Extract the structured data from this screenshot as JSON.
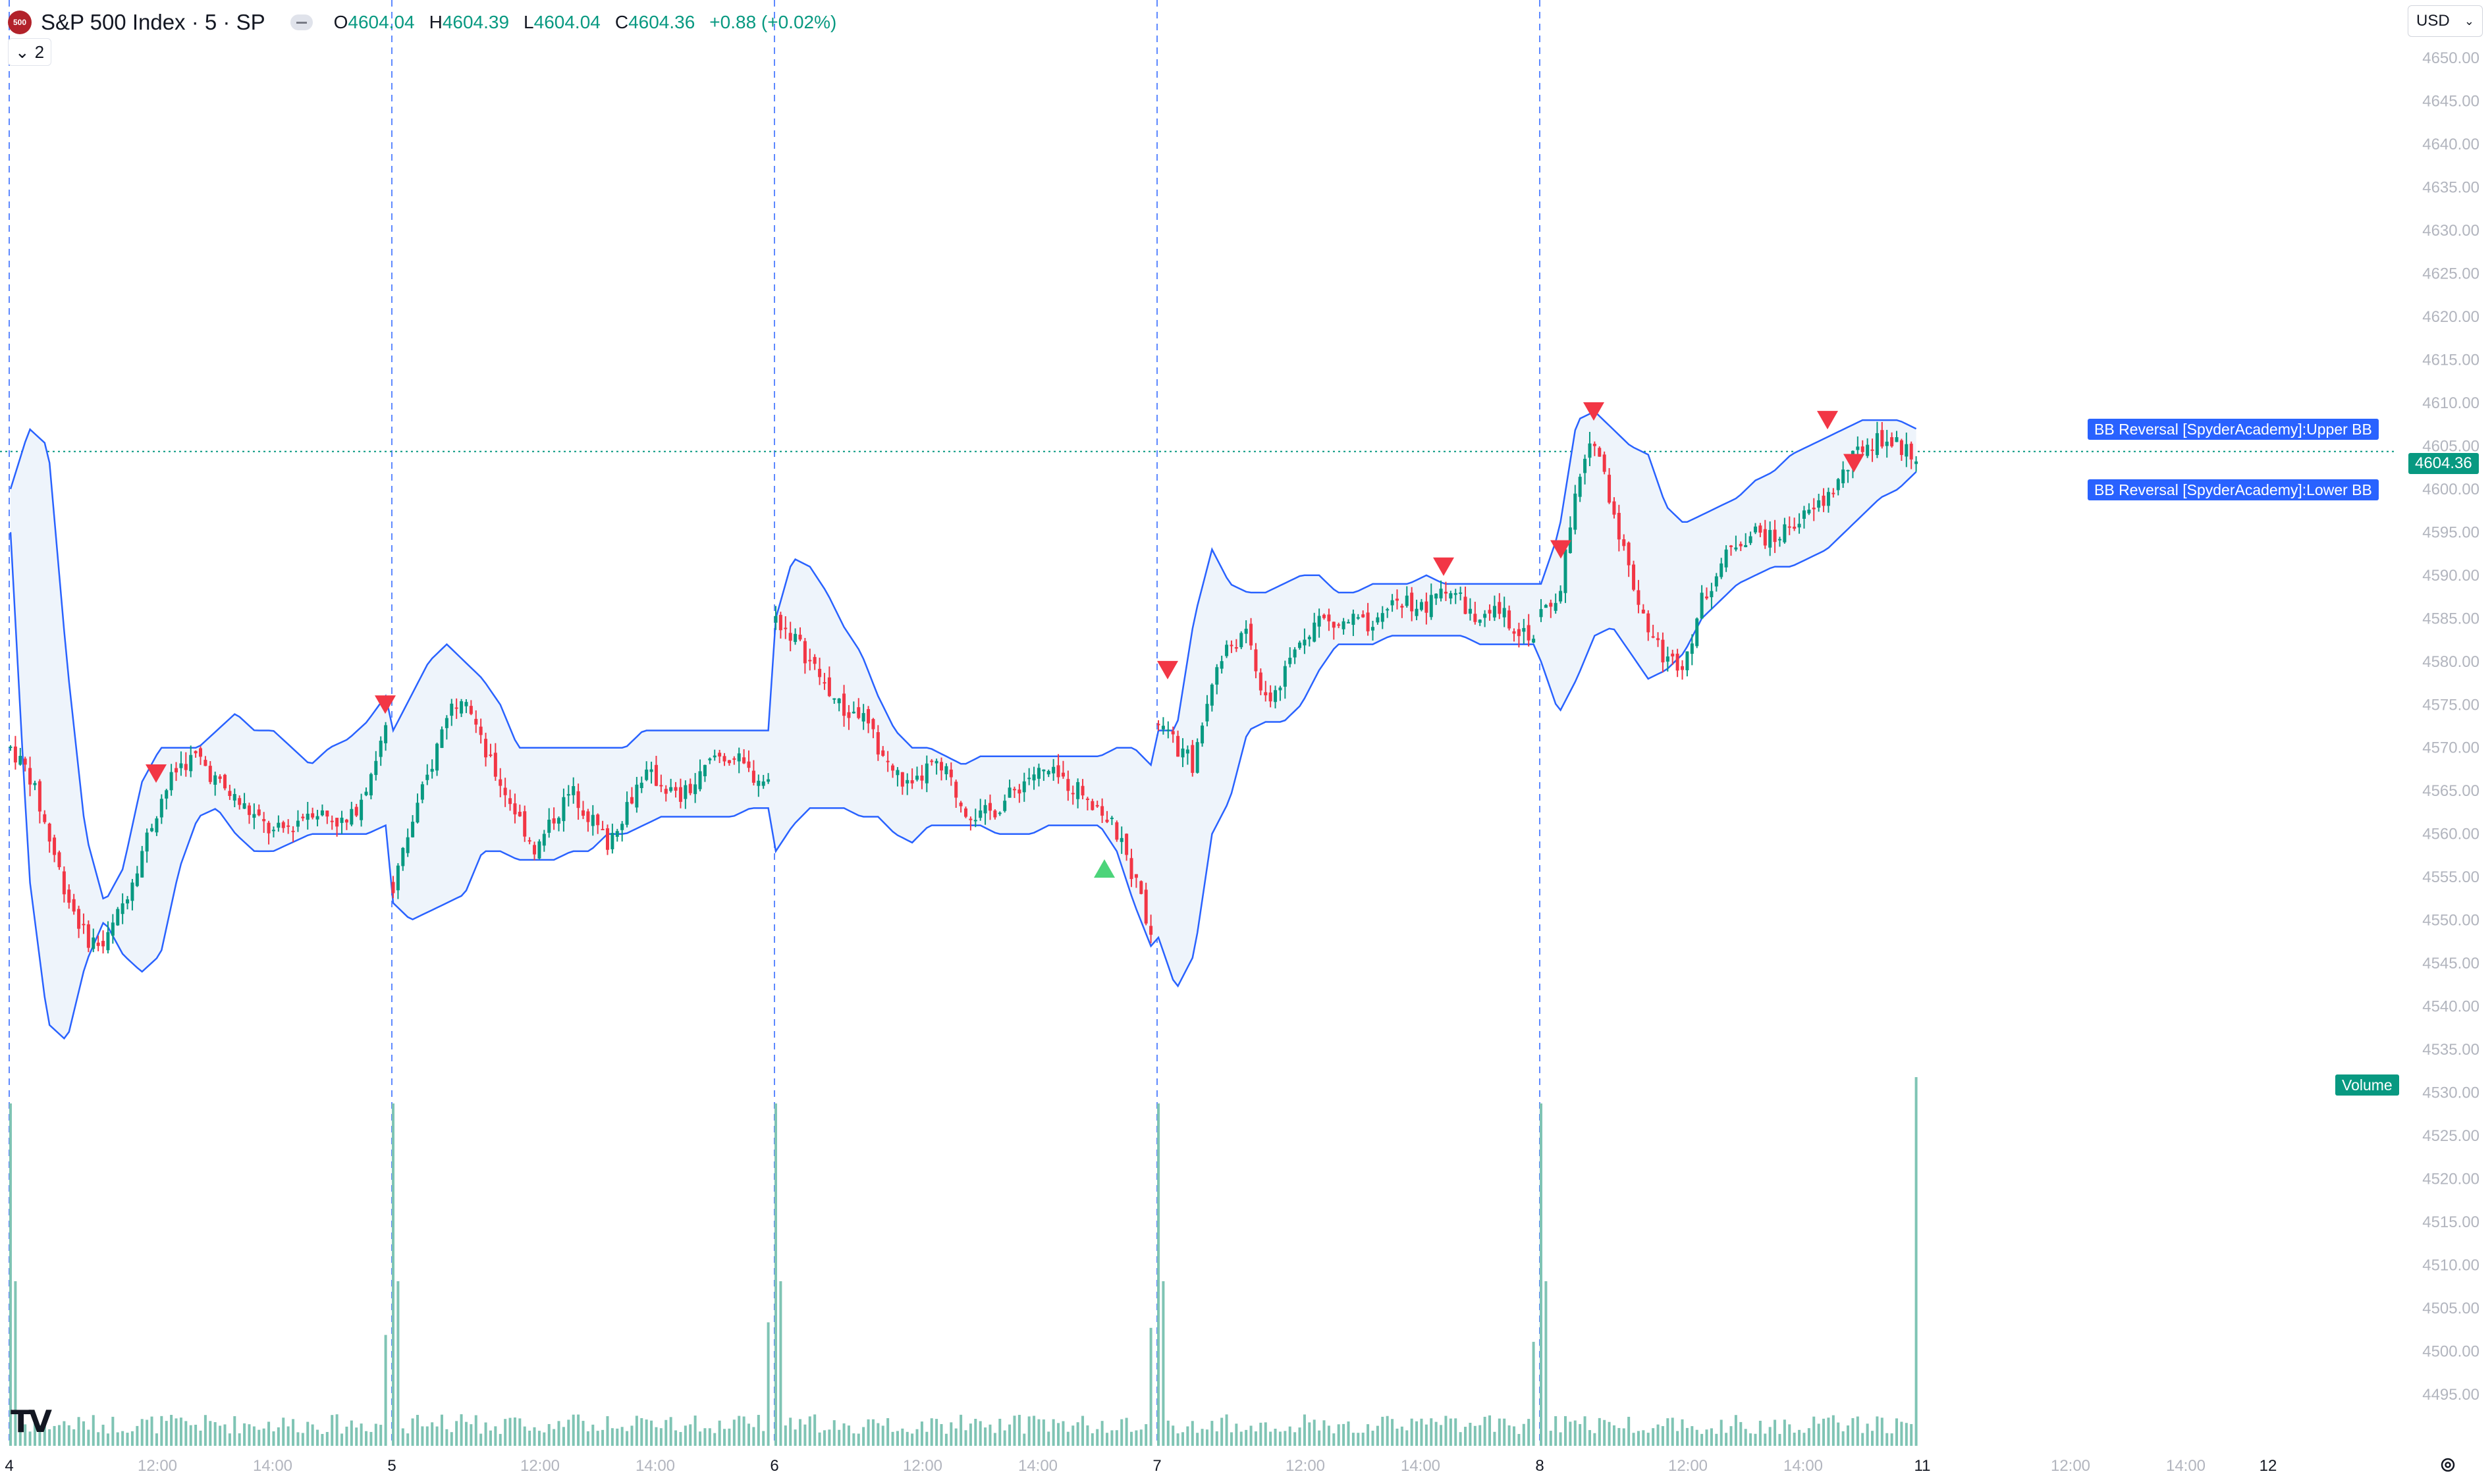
{
  "header": {
    "logo_text": "500",
    "symbol": "S&P 500 Index · 5 · SP",
    "ohlc": [
      {
        "key": "O",
        "value": "4604.04"
      },
      {
        "key": "H",
        "value": "4604.39"
      },
      {
        "key": "L",
        "value": "4604.04"
      },
      {
        "key": "C",
        "value": "4604.36"
      }
    ],
    "change": "+0.88 (+0.02%)",
    "collapse_count": "2",
    "currency": "USD"
  },
  "labels": {
    "upper_bb": "BB Reversal [SpyderAcademy]:Upper BB",
    "lower_bb": "BB Reversal [SpyderAcademy]:Lower BB",
    "last_price": "4604.36",
    "volume": "Volume"
  },
  "colors": {
    "up": "#089981",
    "down": "#f23645",
    "band": "#2962ff",
    "band_fill": "#eef4fb",
    "volume": "#7fc4b4",
    "signal_down": "#f23645",
    "signal_up": "#4cd47a",
    "axis_text": "#b2b5be",
    "session_line": "#2962ff"
  },
  "chart_data": {
    "type": "candlestick",
    "title": "S&P 500 Index · 5 · SP",
    "interval": "5 min",
    "y_axis": {
      "min": 4495,
      "max": 4650,
      "ticks": [
        "4650.00",
        "4645.00",
        "4640.00",
        "4635.00",
        "4630.00",
        "4625.00",
        "4620.00",
        "4615.00",
        "4610.00",
        "4605.00",
        "4600.00",
        "4595.00",
        "4590.00",
        "4585.00",
        "4580.00",
        "4575.00",
        "4570.00",
        "4565.00",
        "4560.00",
        "4555.00",
        "4550.00",
        "4545.00",
        "4540.00",
        "4535.00",
        "4530.00",
        "4525.00",
        "4520.00",
        "4515.00",
        "4510.00",
        "4505.00",
        "4500.00",
        "4495.00"
      ]
    },
    "x_axis": {
      "ticks": [
        "4",
        "12:00",
        "14:00",
        "5",
        "12:00",
        "14:00",
        "6",
        "12:00",
        "14:00",
        "7",
        "12:00",
        "14:00",
        "8",
        "12:00",
        "14:00",
        "11",
        "12:00",
        "14:00",
        "12"
      ],
      "session_starts": [
        "4",
        "5",
        "6",
        "7",
        "8"
      ]
    },
    "last_price": 4604.36,
    "sessions": [
      {
        "day": "4",
        "close_path": [
          4570,
          4567,
          4560,
          4553,
          4548,
          4547,
          4552,
          4558,
          4564,
          4568,
          4569,
          4566,
          4564,
          4562,
          4560,
          4561,
          4563,
          4562,
          4561,
          4566,
          4572
        ],
        "upper": [
          4600,
          4607,
          4605,
          4580,
          4560,
          4552,
          4556,
          4566,
          4570,
          4570,
          4570,
          4572,
          4574,
          4572,
          4572,
          4570,
          4568,
          4570,
          4571,
          4573,
          4576
        ],
        "lower": [
          4595,
          4555,
          4538,
          4536,
          4545,
          4550,
          4546,
          4544,
          4546,
          4556,
          4562,
          4563,
          4560,
          4558,
          4558,
          4559,
          4560,
          4560,
          4560,
          4560,
          4561
        ]
      },
      {
        "day": "5",
        "close_path": [
          4554,
          4561,
          4567,
          4574,
          4577,
          4570,
          4566,
          4562,
          4558,
          4562,
          4565,
          4562,
          4559,
          4563,
          4567,
          4566,
          4564,
          4566,
          4569,
          4569,
          4567,
          4566
        ],
        "upper": [
          4572,
          4576,
          4580,
          4582,
          4580,
          4578,
          4575,
          4570,
          4570,
          4570,
          4570,
          4570,
          4570,
          4570,
          4572,
          4572,
          4572,
          4572,
          4572,
          4572,
          4572,
          4572
        ],
        "lower": [
          4552,
          4550,
          4551,
          4552,
          4553,
          4558,
          4558,
          4557,
          4557,
          4557,
          4558,
          4558,
          4560,
          4560,
          4561,
          4562,
          4562,
          4562,
          4562,
          4562,
          4563,
          4563
        ]
      },
      {
        "day": "6",
        "close_path": [
          4585,
          4583,
          4580,
          4577,
          4574,
          4574,
          4570,
          4567,
          4565,
          4568,
          4567,
          4563,
          4562,
          4563,
          4565,
          4567,
          4567,
          4566,
          4565,
          4563,
          4560,
          4555,
          4549
        ],
        "upper": [
          4585,
          4592,
          4591,
          4588,
          4584,
          4581,
          4576,
          4572,
          4570,
          4570,
          4569,
          4568,
          4569,
          4569,
          4569,
          4569,
          4569,
          4569,
          4569,
          4569,
          4570,
          4570,
          4568
        ],
        "lower": [
          4558,
          4561,
          4563,
          4563,
          4563,
          4562,
          4562,
          4560,
          4559,
          4561,
          4561,
          4561,
          4561,
          4560,
          4560,
          4560,
          4561,
          4561,
          4561,
          4561,
          4558,
          4552,
          4547
        ]
      },
      {
        "day": "7",
        "close_path": [
          4573,
          4570,
          4568,
          4578,
          4582,
          4583,
          4575,
          4578,
          4583,
          4585,
          4584,
          4585,
          4583,
          4587,
          4587,
          4586,
          4589,
          4587,
          4584,
          4586,
          4584,
          4583
        ],
        "upper": [
          4572,
          4572,
          4585,
          4593,
          4589,
          4588,
          4588,
          4589,
          4590,
          4590,
          4588,
          4588,
          4589,
          4589,
          4589,
          4590,
          4589,
          4589,
          4589,
          4589,
          4589,
          4589
        ],
        "lower": [
          4548,
          4542,
          4546,
          4560,
          4564,
          4572,
          4573,
          4573,
          4575,
          4579,
          4582,
          4582,
          4582,
          4583,
          4583,
          4583,
          4583,
          4583,
          4582,
          4582,
          4582,
          4582
        ]
      },
      {
        "day": "8",
        "close_path": [
          4585,
          4588,
          4600,
          4606,
          4598,
          4590,
          4584,
          4580,
          4580,
          4587,
          4591,
          4594,
          4595,
          4594,
          4596,
          4597,
          4599,
          4602,
          4605,
          4606,
          4605,
          4604
        ],
        "upper": [
          4589,
          4595,
          4608,
          4609,
          4607,
          4605,
          4604,
          4598,
          4596,
          4597,
          4598,
          4599,
          4601,
          4602,
          4604,
          4605,
          4606,
          4607,
          4608,
          4608,
          4608,
          4607
        ],
        "lower": [
          4580,
          4574,
          4578,
          4583,
          4584,
          4581,
          4578,
          4579,
          4581,
          4585,
          4587,
          4589,
          4590,
          4591,
          4591,
          4592,
          4593,
          4595,
          4597,
          4599,
          4600,
          4602
        ]
      }
    ],
    "signals": [
      {
        "type": "sell",
        "day": "4",
        "approx_price": 4567
      },
      {
        "type": "sell",
        "day": "4",
        "approx_price": 4575
      },
      {
        "type": "sell",
        "day": "6",
        "approx_price": 4579
      },
      {
        "type": "buy",
        "day": "6",
        "approx_price": 4556
      },
      {
        "type": "sell",
        "day": "7",
        "approx_price": 4591
      },
      {
        "type": "sell",
        "day": "7",
        "approx_price": 4593
      },
      {
        "type": "sell",
        "day": "8",
        "approx_price": 4609
      },
      {
        "type": "sell",
        "day": "8",
        "approx_price": 4608
      },
      {
        "type": "sell",
        "day": "8",
        "approx_price": 4603
      }
    ],
    "volume_note": "volume spikes at each session open and final bar"
  }
}
